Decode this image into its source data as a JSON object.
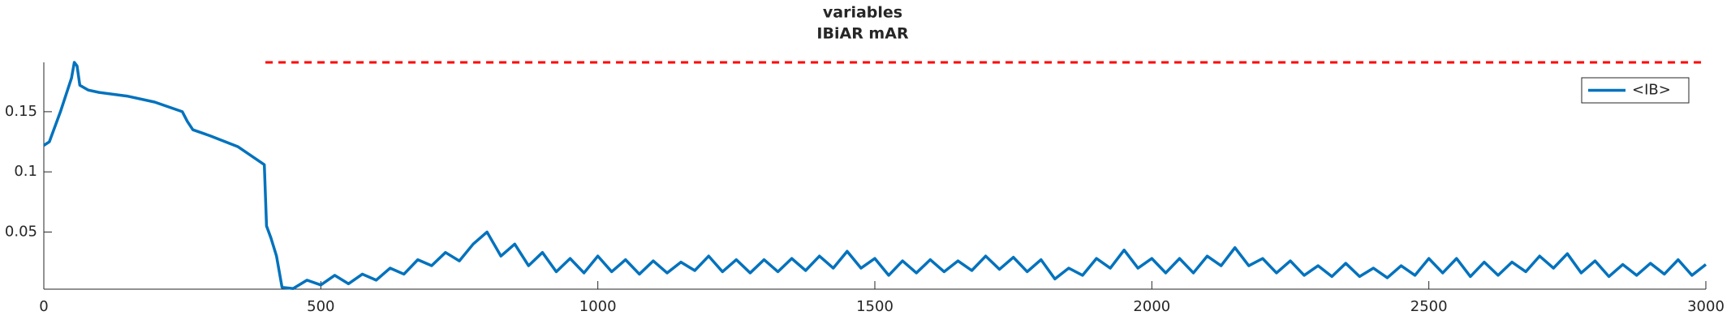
{
  "chart_data": {
    "type": "line",
    "title": [
      "variables",
      "IBiAR mAR"
    ],
    "x": [
      0,
      10,
      30,
      50,
      55,
      60,
      65,
      80,
      100,
      150,
      200,
      250,
      259,
      269,
      300,
      350,
      398,
      402,
      410,
      420,
      430,
      450,
      475,
      500,
      525,
      550,
      575,
      600,
      625,
      650,
      675,
      700,
      725,
      750,
      775,
      800,
      825,
      850,
      875,
      900,
      925,
      950,
      975,
      1000,
      1025,
      1050,
      1075,
      1100,
      1125,
      1150,
      1175,
      1200,
      1225,
      1250,
      1275,
      1300,
      1325,
      1350,
      1375,
      1400,
      1425,
      1450,
      1475,
      1500,
      1525,
      1550,
      1575,
      1600,
      1625,
      1650,
      1675,
      1700,
      1725,
      1750,
      1775,
      1800,
      1825,
      1850,
      1875,
      1900,
      1925,
      1950,
      1975,
      2000,
      2025,
      2050,
      2075,
      2100,
      2125,
      2150,
      2175,
      2200,
      2225,
      2250,
      2275,
      2300,
      2325,
      2350,
      2375,
      2400,
      2425,
      2450,
      2475,
      2500,
      2525,
      2550,
      2575,
      2600,
      2625,
      2650,
      2675,
      2700,
      2725,
      2750,
      2775,
      2800,
      2825,
      2850,
      2875,
      2900,
      2925,
      2950,
      2975,
      3000
    ],
    "series": [
      {
        "name": "<IB>",
        "color": "#0072bd",
        "values": [
          0.122,
          0.125,
          0.15,
          0.178,
          0.191,
          0.188,
          0.172,
          0.168,
          0.166,
          0.163,
          0.158,
          0.15,
          0.142,
          0.135,
          0.13,
          0.121,
          0.106,
          0.055,
          0.045,
          0.03,
          0.004,
          0.003,
          0.01,
          0.006,
          0.014,
          0.007,
          0.015,
          0.01,
          0.02,
          0.015,
          0.027,
          0.022,
          0.033,
          0.026,
          0.04,
          0.05,
          0.03,
          0.04,
          0.022,
          0.033,
          0.017,
          0.028,
          0.016,
          0.03,
          0.017,
          0.027,
          0.015,
          0.026,
          0.016,
          0.025,
          0.018,
          0.03,
          0.017,
          0.027,
          0.016,
          0.027,
          0.017,
          0.028,
          0.018,
          0.03,
          0.02,
          0.034,
          0.02,
          0.028,
          0.014,
          0.026,
          0.016,
          0.027,
          0.017,
          0.026,
          0.018,
          0.03,
          0.019,
          0.029,
          0.017,
          0.027,
          0.011,
          0.02,
          0.014,
          0.028,
          0.02,
          0.035,
          0.02,
          0.028,
          0.016,
          0.028,
          0.016,
          0.03,
          0.022,
          0.037,
          0.022,
          0.028,
          0.016,
          0.026,
          0.014,
          0.022,
          0.013,
          0.024,
          0.013,
          0.02,
          0.012,
          0.022,
          0.014,
          0.028,
          0.016,
          0.028,
          0.013,
          0.025,
          0.014,
          0.025,
          0.017,
          0.03,
          0.02,
          0.032,
          0.016,
          0.026,
          0.013,
          0.023,
          0.014,
          0.024,
          0.015,
          0.027,
          0.014,
          0.023
        ]
      }
    ],
    "reference_line": {
      "x": [
        400,
        3000
      ],
      "y": 0.191,
      "color": "#ff0000",
      "dashed": true
    },
    "xlim": [
      0,
      3000
    ],
    "xticks": [
      0,
      500,
      1000,
      1500,
      2000,
      2500,
      3000
    ],
    "ylim": [
      0.0025,
      0.191
    ],
    "yticks": [
      0.05,
      0.1,
      0.15
    ],
    "legend": "northeast"
  }
}
